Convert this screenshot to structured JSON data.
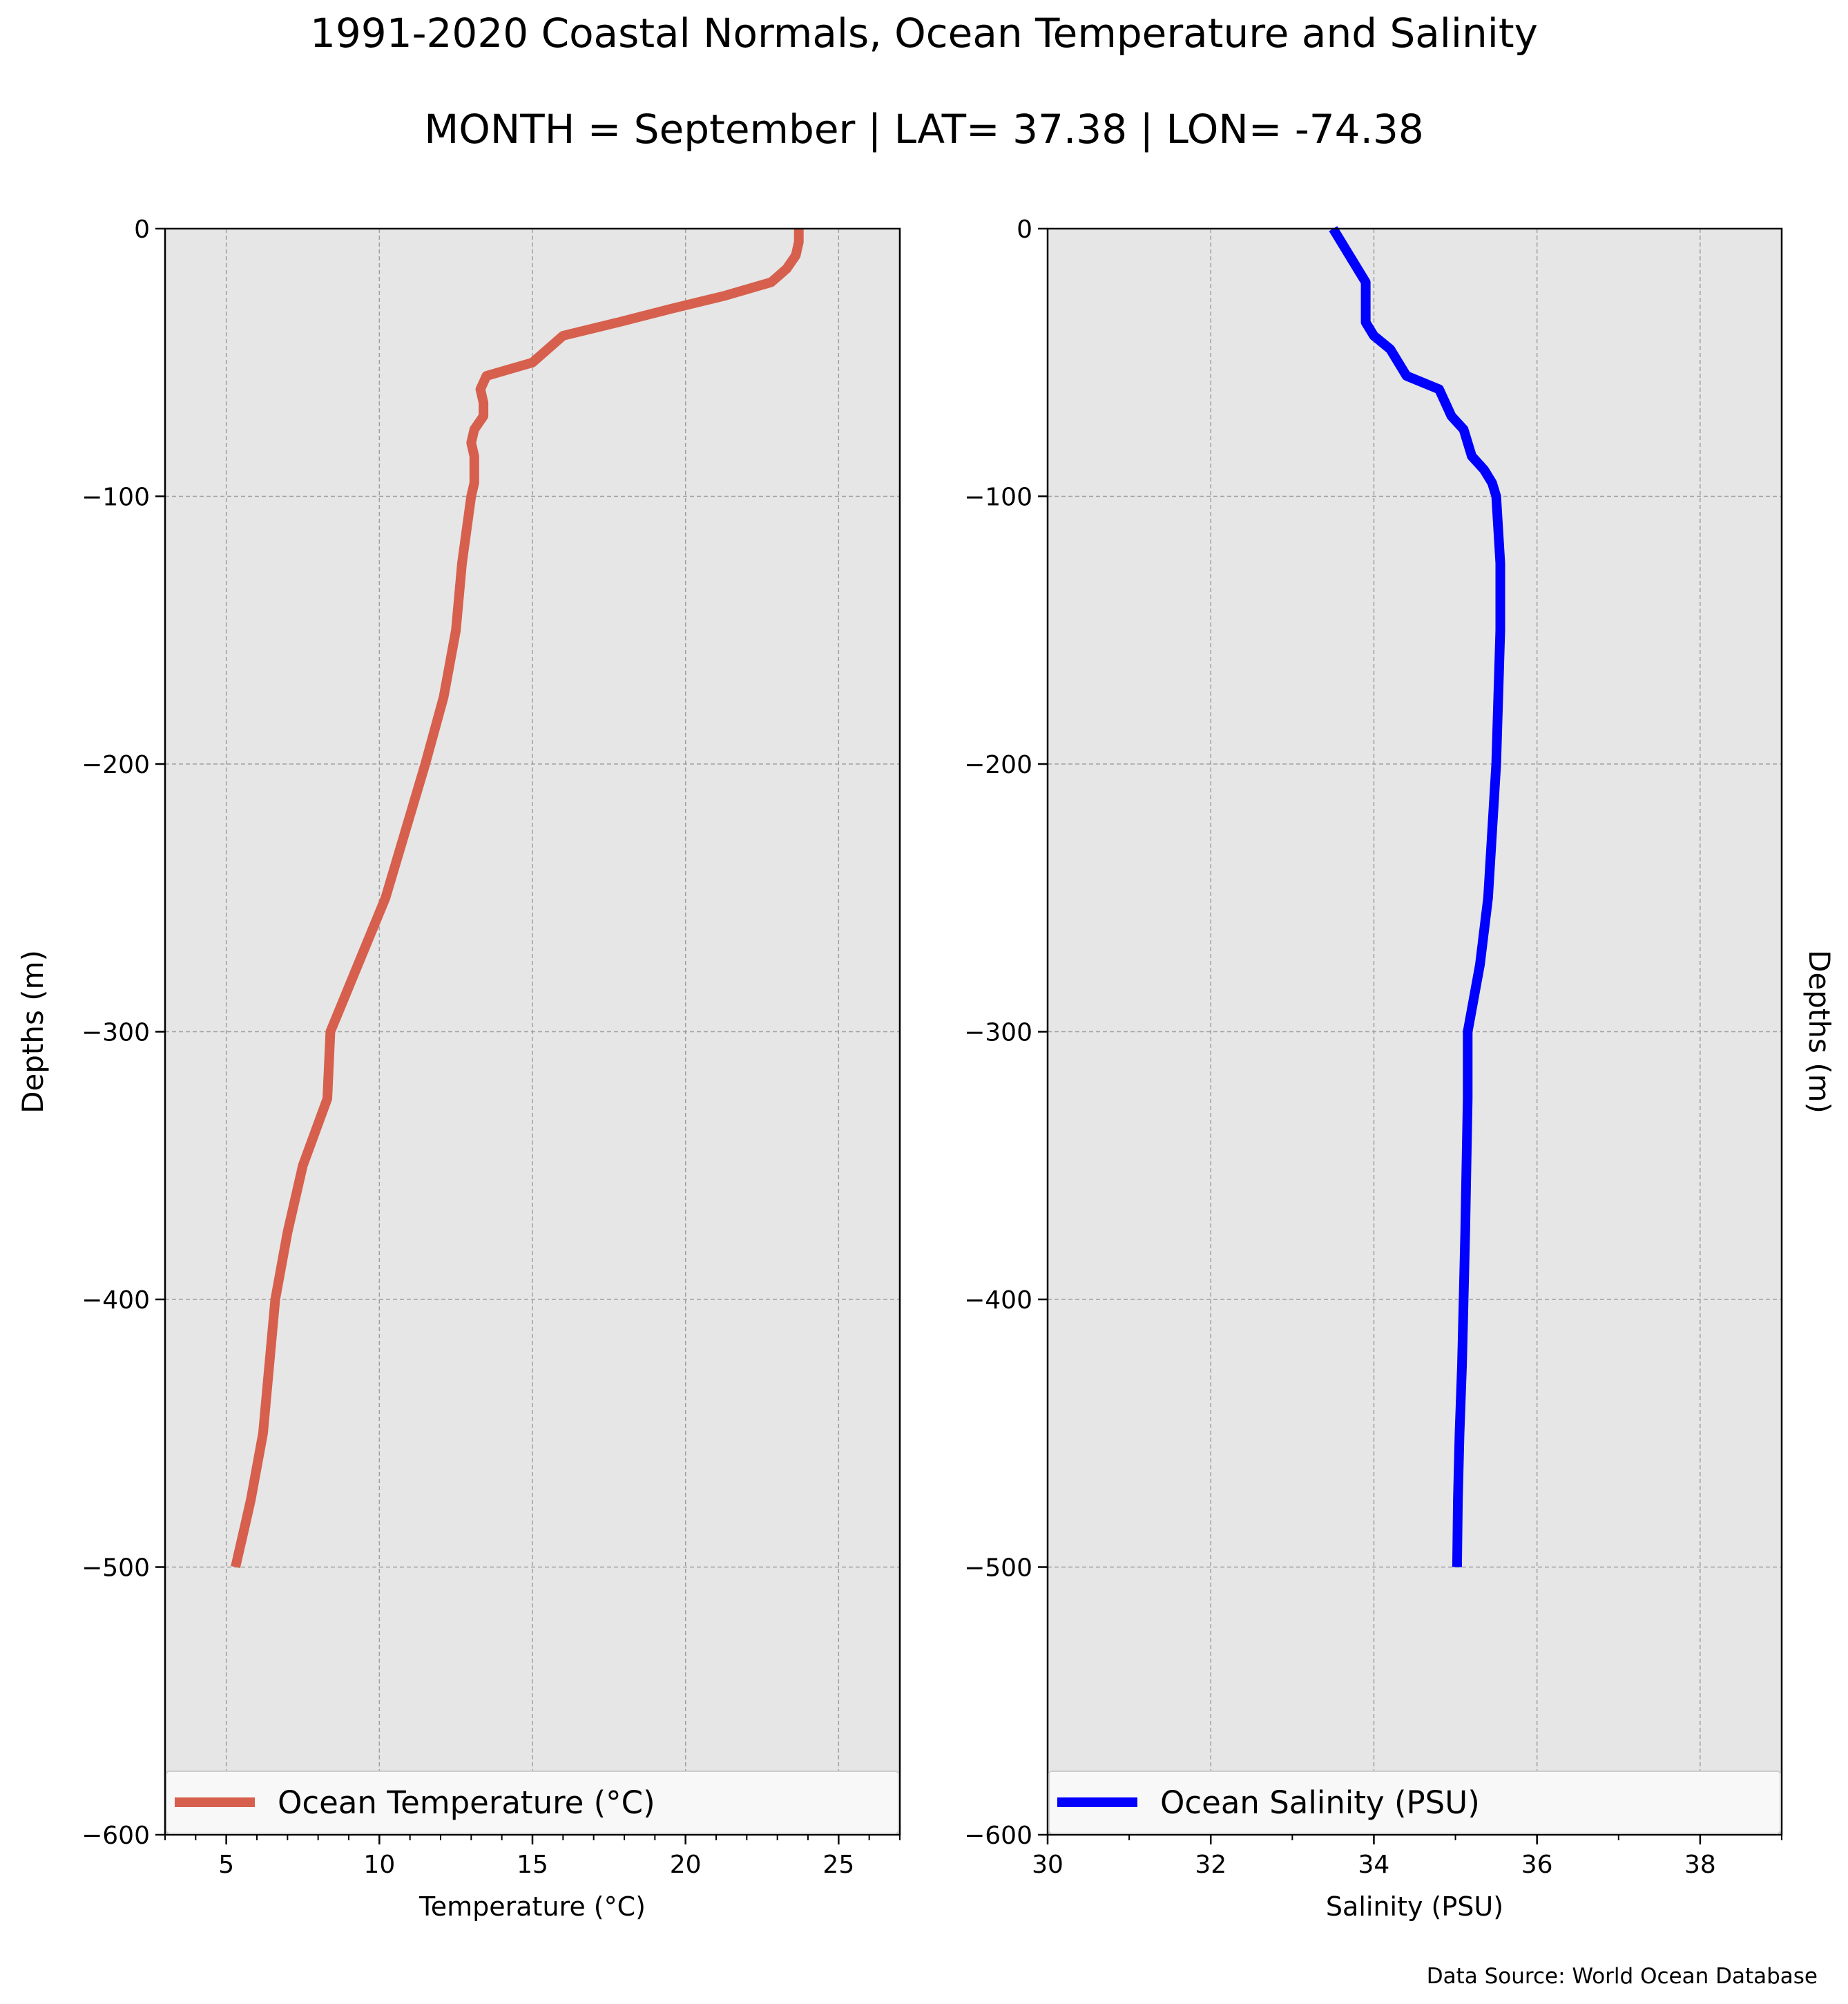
{
  "figure": {
    "title_line1": "1991-2020 Coastal Normals, Ocean Temperature and Salinity",
    "title_line2": "MONTH = September | LAT= 37.38 | LON= -74.38",
    "source": "Data Source: World Ocean Database",
    "background_color": "#e6e6e6",
    "grid_color": "#a0a0a0"
  },
  "chart_data": [
    {
      "type": "line",
      "xlabel": "Temperature (°C)",
      "ylabel": "Depths (m)",
      "ylabel_side": "left",
      "xlim": [
        3,
        27
      ],
      "ylim": [
        -600,
        0
      ],
      "xticks": [
        5,
        10,
        15,
        20,
        25
      ],
      "xtick_labels": [
        "5",
        "10",
        "15",
        "20",
        "25"
      ],
      "x_minor_ticks": [
        3,
        4,
        6,
        7,
        8,
        9,
        11,
        12,
        13,
        14,
        16,
        17,
        18,
        19,
        21,
        22,
        23,
        24,
        26,
        27
      ],
      "yticks": [
        0,
        -100,
        -200,
        -300,
        -400,
        -500,
        -600
      ],
      "ytick_labels": [
        "0",
        "−100",
        "−200",
        "−300",
        "−400",
        "−500",
        "−600"
      ],
      "grid": true,
      "legend_position": "bottom",
      "series": [
        {
          "name": "Ocean Temperature (°C)",
          "color": "#d6604d",
          "x": [
            23.7,
            23.7,
            23.6,
            23.3,
            22.8,
            21.3,
            19.5,
            17.8,
            16.0,
            15.0,
            13.5,
            13.3,
            13.4,
            13.4,
            13.1,
            13.0,
            13.1,
            13.1,
            13.1,
            13.0,
            12.7,
            12.5,
            12.1,
            11.5,
            10.2,
            9.3,
            8.4,
            8.3,
            7.5,
            7.0,
            6.6,
            6.2,
            5.8,
            5.6,
            5.4,
            5.3
          ],
          "y": [
            0,
            -5,
            -10,
            -15,
            -20,
            -25,
            -30,
            -35,
            -40,
            -50,
            -55,
            -60,
            -65,
            -70,
            -75,
            -80,
            -85,
            -90,
            -95,
            -100,
            -125,
            -150,
            -175,
            -200,
            -250,
            -275,
            -300,
            -325,
            -350,
            -375,
            -400,
            -450,
            -475,
            -485,
            -495,
            -500
          ]
        }
      ]
    },
    {
      "type": "line",
      "xlabel": "Salinity (PSU)",
      "ylabel": "Depths (m)",
      "ylabel_side": "right",
      "xlim": [
        30,
        39
      ],
      "ylim": [
        -600,
        0
      ],
      "xticks": [
        30,
        32,
        34,
        36,
        38
      ],
      "xtick_labels": [
        "30",
        "32",
        "34",
        "36",
        "38"
      ],
      "x_minor_ticks": [
        31,
        33,
        35,
        37,
        39
      ],
      "yticks": [
        0,
        -100,
        -200,
        -300,
        -400,
        -500,
        -600
      ],
      "ytick_labels": [
        "0",
        "−100",
        "−200",
        "−300",
        "−400",
        "−500",
        "−600"
      ],
      "grid": true,
      "legend_position": "bottom",
      "series": [
        {
          "name": "Ocean Salinity (PSU)",
          "color": "#0000ff",
          "x": [
            33.5,
            33.6,
            33.8,
            33.9,
            33.9,
            33.9,
            34.0,
            34.2,
            34.4,
            34.8,
            34.95,
            35.1,
            35.2,
            35.35,
            35.45,
            35.5,
            35.55,
            35.55,
            35.5,
            35.4,
            35.3,
            35.15,
            35.15,
            35.12,
            35.1,
            35.08,
            35.05,
            35.03,
            35.02
          ],
          "y": [
            0,
            -5,
            -15,
            -20,
            -30,
            -35,
            -40,
            -45,
            -55,
            -60,
            -70,
            -75,
            -85,
            -90,
            -95,
            -100,
            -125,
            -150,
            -200,
            -250,
            -275,
            -300,
            -325,
            -375,
            -400,
            -425,
            -450,
            -475,
            -500
          ]
        }
      ]
    }
  ]
}
